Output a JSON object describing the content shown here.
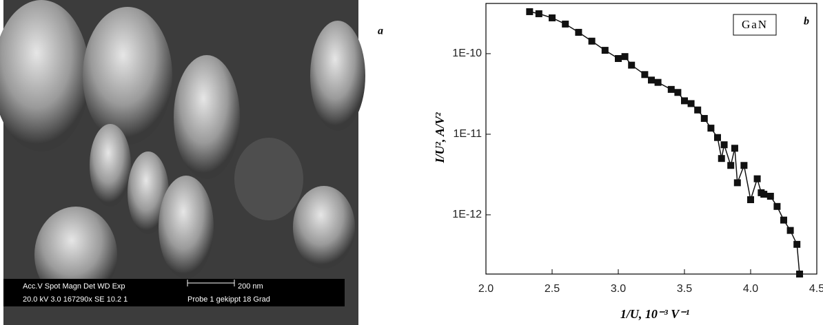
{
  "chart_data": {
    "type": "scatter-line",
    "annotation": "GaN",
    "xlabel": "1/U, 10⁻³ V⁻¹",
    "ylabel": "I/U², A/V²",
    "x": [
      2.33,
      2.4,
      2.5,
      2.6,
      2.7,
      2.8,
      2.9,
      3.0,
      3.05,
      3.1,
      3.2,
      3.25,
      3.3,
      3.4,
      3.45,
      3.5,
      3.55,
      3.6,
      3.65,
      3.7,
      3.75,
      3.78,
      3.8,
      3.85,
      3.88,
      3.9,
      3.95,
      4.0,
      4.05,
      4.08,
      4.1,
      4.15,
      4.2,
      4.25,
      4.3,
      4.35,
      4.37
    ],
    "series": [
      {
        "color": "#111111",
        "values": [
          3.32e-10,
          3.13e-10,
          2.78e-10,
          2.33e-10,
          1.84e-10,
          1.43e-10,
          1.1e-10,
          8.7e-11,
          9.2e-11,
          7.2e-11,
          5.5e-11,
          4.7e-11,
          4.4e-11,
          3.6e-11,
          3.3e-11,
          2.6e-11,
          2.4e-11,
          2e-11,
          1.57e-11,
          1.19e-11,
          9.1e-12,
          5e-12,
          7.4e-12,
          4.1e-12,
          6.7e-12,
          2.5e-12,
          4.1e-12,
          1.54e-12,
          2.8e-12,
          1.88e-12,
          1.8e-12,
          1.7e-12,
          1.27e-12,
          8.6e-13,
          6.4e-13,
          4.3e-13,
          1.84e-13
        ]
      }
    ],
    "xlim": [
      2.0,
      4.5
    ],
    "xticks": [
      {
        "value": 2.0,
        "label": "2.0"
      },
      2.5,
      {
        "value": 3.0,
        "label": "3.0"
      },
      3.5,
      {
        "value": 4.0,
        "label": "4.0"
      },
      4.5
    ],
    "ylim": [
      1.84e-13,
      4.2e-10
    ],
    "yticks": [
      {
        "value": 1e-10,
        "label": "1E-10"
      },
      {
        "value": 1e-11,
        "label": "1E-11"
      },
      {
        "value": 1e-12,
        "label": "1E-12"
      }
    ],
    "log_y": true
  },
  "panel_labels": [
    "a",
    "b"
  ],
  "sem_image": {
    "header": "Acc.V  Spot Magn    Det  WD  Exp",
    "settings": "20.0 kV 3.0  167290x SE   10.2  1",
    "scale": "200 nm",
    "sample": "Probe 1 gekippt 18 Grad"
  }
}
